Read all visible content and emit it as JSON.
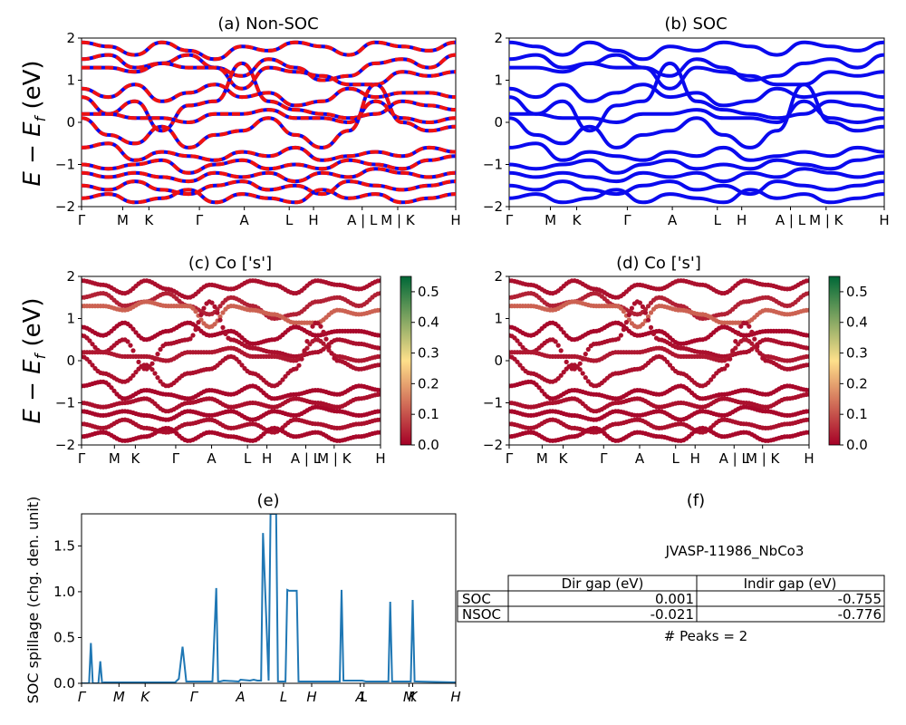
{
  "panels": {
    "a": {
      "title": "(a) Non-SOC"
    },
    "b": {
      "title": "(b) SOC"
    },
    "c": {
      "title": "(c)  Co ['s']"
    },
    "d": {
      "title": "(d) Co ['s']"
    },
    "e": {
      "title": "(e)"
    },
    "f": {
      "title": "(f)"
    }
  },
  "band_ylabel": "E − E",
  "band_ylabel_sub": "f",
  "band_ylabel_unit": " (eV)",
  "spillage_ylabel": "SOC spillage (chg. den. unit)",
  "colors": {
    "nsoc_band": "#ee1111",
    "soc_band": "#0a0aee",
    "spillage_line": "#1f77b4",
    "proj_low": "#a50026",
    "proj_mid": "#fee08b",
    "proj_high": "#006837"
  },
  "chart_data": [
    {
      "type": "line",
      "panel": "a",
      "title": "(a) Non-SOC",
      "ylim": [
        -2,
        2
      ],
      "yticks": [
        "-2",
        "-1",
        "0",
        "1",
        "2"
      ],
      "xticks": [
        "Γ",
        "M",
        "K",
        "Γ",
        "A",
        "L",
        "H",
        "A | L",
        "M | K",
        "H"
      ],
      "xtick_pos": [
        0,
        0.11,
        0.18,
        0.315,
        0.435,
        0.555,
        0.62,
        0.75,
        0.845,
        1.0
      ],
      "series": [
        {
          "values": [
            1.9,
            1.8,
            1.6,
            1.9,
            1.7,
            1.5,
            1.8,
            1.7,
            1.9,
            1.8,
            1.6,
            1.9,
            1.8,
            1.7,
            1.9
          ]
        },
        {
          "values": [
            1.5,
            1.6,
            1.3,
            1.4,
            1.6,
            1.3,
            1.1,
            1.5,
            1.3,
            1.0,
            1.1,
            1.4,
            1.5,
            1.3,
            1.6
          ]
        },
        {
          "values": [
            1.3,
            1.3,
            1.2,
            1.4,
            1.3,
            1.3,
            0.8,
            1.3,
            1.2,
            1.1,
            0.9,
            0.9,
            1.2,
            1.1,
            1.2
          ]
        },
        {
          "values": [
            0.8,
            0.6,
            0.9,
            0.5,
            0.7,
            0.9,
            0.6,
            0.7,
            0.4,
            0.5,
            0.8,
            0.6,
            0.7,
            0.7,
            0.6
          ]
        },
        {
          "values": [
            0.6,
            0.2,
            0.5,
            -0.2,
            0.4,
            0.5,
            1.4,
            0.5,
            0.3,
            0.2,
            0.1,
            0.2,
            0.5,
            0.4,
            0.3
          ]
        },
        {
          "values": [
            0.2,
            0.2,
            0.1,
            0.1,
            0.0,
            0.2,
            0.2,
            0.3,
            0.1,
            0.1,
            0.0,
            0.5,
            0.1,
            0.0,
            0.1
          ]
        },
        {
          "values": [
            0.1,
            -0.3,
            -0.5,
            -0.1,
            -0.6,
            -0.3,
            -0.2,
            0.1,
            -0.3,
            -0.6,
            -0.2,
            0.9,
            0.0,
            -0.2,
            -0.1
          ]
        },
        {
          "values": [
            -0.6,
            -0.5,
            -0.9,
            -0.7,
            -0.8,
            -0.9,
            -0.7,
            -0.8,
            -0.6,
            -0.9,
            -0.8,
            -0.7,
            -0.8,
            -0.6,
            -0.7
          ]
        },
        {
          "values": [
            -1.0,
            -1.1,
            -1.0,
            -0.9,
            -1.2,
            -1.0,
            -0.9,
            -1.1,
            -1.0,
            -1.1,
            -0.9,
            -1.0,
            -1.1,
            -0.9,
            -0.8
          ]
        },
        {
          "values": [
            -1.2,
            -1.3,
            -1.2,
            -1.3,
            -1.4,
            -1.2,
            -1.3,
            -1.2,
            -1.4,
            -1.2,
            -1.3,
            -1.1,
            -1.2,
            -1.3,
            -1.2
          ]
        },
        {
          "values": [
            -1.5,
            -1.6,
            -1.4,
            -1.6,
            -1.7,
            -1.5,
            -1.4,
            -1.6,
            -1.5,
            -1.7,
            -1.4,
            -1.5,
            -1.6,
            -1.5,
            -1.4
          ]
        },
        {
          "values": [
            -1.8,
            -1.7,
            -1.9,
            -1.8,
            -1.6,
            -1.9,
            -1.7,
            -1.8,
            -1.9,
            -1.6,
            -1.8,
            -1.7,
            -1.9,
            -1.8,
            -1.7
          ]
        }
      ]
    },
    {
      "type": "line",
      "panel": "b",
      "title": "(b) SOC",
      "ylim": [
        -2,
        2
      ],
      "yticks": [
        "-2",
        "-1",
        "0",
        "1",
        "2"
      ],
      "xticks": [
        "Γ",
        "M",
        "K",
        "Γ",
        "A",
        "L",
        "H",
        "A | L",
        "M | K",
        "H"
      ],
      "xtick_pos": [
        0,
        0.11,
        0.18,
        0.315,
        0.435,
        0.555,
        0.62,
        0.75,
        0.845,
        1.0
      ],
      "series": [
        {
          "values": [
            1.9,
            1.8,
            1.6,
            1.9,
            1.7,
            1.5,
            1.8,
            1.7,
            1.9,
            1.8,
            1.6,
            1.9,
            1.8,
            1.7,
            1.9
          ]
        },
        {
          "values": [
            1.5,
            1.6,
            1.3,
            1.4,
            1.6,
            1.3,
            1.1,
            1.5,
            1.3,
            1.0,
            1.1,
            1.4,
            1.5,
            1.3,
            1.6
          ]
        },
        {
          "values": [
            1.3,
            1.3,
            1.2,
            1.4,
            1.3,
            1.3,
            0.8,
            1.3,
            1.2,
            1.1,
            0.9,
            0.9,
            1.2,
            1.1,
            1.2
          ]
        },
        {
          "values": [
            0.8,
            0.6,
            0.9,
            0.5,
            0.7,
            0.9,
            0.6,
            0.7,
            0.4,
            0.5,
            0.8,
            0.6,
            0.7,
            0.7,
            0.6
          ]
        },
        {
          "values": [
            0.6,
            0.2,
            0.5,
            -0.2,
            0.4,
            0.5,
            1.4,
            0.5,
            0.3,
            0.2,
            0.1,
            0.2,
            0.5,
            0.4,
            0.3
          ]
        },
        {
          "values": [
            0.2,
            0.2,
            0.1,
            0.1,
            0.0,
            0.2,
            0.2,
            0.3,
            0.1,
            0.1,
            0.0,
            0.5,
            0.1,
            0.0,
            0.1
          ]
        },
        {
          "values": [
            0.1,
            -0.3,
            -0.5,
            -0.1,
            -0.6,
            -0.3,
            -0.2,
            0.1,
            -0.3,
            -0.6,
            -0.2,
            0.9,
            0.0,
            -0.2,
            -0.1
          ]
        },
        {
          "values": [
            -0.6,
            -0.5,
            -0.9,
            -0.7,
            -0.8,
            -0.9,
            -0.7,
            -0.8,
            -0.6,
            -0.9,
            -0.8,
            -0.7,
            -0.8,
            -0.6,
            -0.7
          ]
        },
        {
          "values": [
            -1.0,
            -1.1,
            -1.0,
            -0.9,
            -1.2,
            -1.0,
            -0.9,
            -1.1,
            -1.0,
            -1.1,
            -0.9,
            -1.0,
            -1.1,
            -0.9,
            -0.8
          ]
        },
        {
          "values": [
            -1.2,
            -1.3,
            -1.2,
            -1.3,
            -1.4,
            -1.2,
            -1.3,
            -1.2,
            -1.4,
            -1.2,
            -1.3,
            -1.1,
            -1.2,
            -1.3,
            -1.2
          ]
        },
        {
          "values": [
            -1.5,
            -1.6,
            -1.4,
            -1.6,
            -1.7,
            -1.5,
            -1.4,
            -1.6,
            -1.5,
            -1.7,
            -1.4,
            -1.5,
            -1.6,
            -1.5,
            -1.4
          ]
        },
        {
          "values": [
            -1.8,
            -1.7,
            -1.9,
            -1.8,
            -1.6,
            -1.9,
            -1.7,
            -1.8,
            -1.9,
            -1.6,
            -1.8,
            -1.7,
            -1.9,
            -1.8,
            -1.7
          ]
        }
      ]
    },
    {
      "type": "scatter",
      "panel": "c",
      "title": "(c)  Co ['s']",
      "ylim": [
        -2,
        2
      ],
      "yticks": [
        "-2",
        "-1",
        "0",
        "1",
        "2"
      ],
      "xticks": [
        "Γ",
        "M",
        "K",
        "Γ",
        "A",
        "L",
        "H",
        "A | L",
        "M | K",
        "H"
      ],
      "xtick_pos": [
        0,
        0.11,
        0.18,
        0.315,
        0.435,
        0.555,
        0.62,
        0.75,
        0.845,
        1.0
      ],
      "colorbar": {
        "min": 0.0,
        "max": 0.55,
        "ticks": [
          "0.0",
          "0.1",
          "0.2",
          "0.3",
          "0.4",
          "0.5"
        ],
        "tick_values": [
          0,
          0.1,
          0.2,
          0.3,
          0.4,
          0.5
        ]
      },
      "weights": [
        0.02,
        0.04,
        0.12,
        0.01,
        0.02,
        0.03,
        0.02,
        0.01,
        0.02,
        0.01,
        0.02,
        0.01
      ]
    },
    {
      "type": "scatter",
      "panel": "d",
      "title": "(d) Co ['s']",
      "ylim": [
        -2,
        2
      ],
      "yticks": [
        "-2",
        "-1",
        "0",
        "1",
        "2"
      ],
      "xticks": [
        "Γ",
        "M",
        "K",
        "Γ",
        "A",
        "L",
        "H",
        "A | L",
        "M | K",
        "H"
      ],
      "xtick_pos": [
        0,
        0.11,
        0.18,
        0.315,
        0.435,
        0.555,
        0.62,
        0.75,
        0.845,
        1.0
      ],
      "colorbar": {
        "min": 0.0,
        "max": 0.55,
        "ticks": [
          "0.0",
          "0.1",
          "0.2",
          "0.3",
          "0.4",
          "0.5"
        ],
        "tick_values": [
          0,
          0.1,
          0.2,
          0.3,
          0.4,
          0.5
        ]
      },
      "weights": [
        0.02,
        0.04,
        0.12,
        0.01,
        0.02,
        0.03,
        0.02,
        0.01,
        0.02,
        0.01,
        0.02,
        0.01
      ]
    },
    {
      "type": "line",
      "panel": "e",
      "title": "(e)",
      "ylabel": "SOC spillage (chg. den. unit)",
      "ylim": [
        0,
        1.85
      ],
      "yticks": [
        "0.0",
        "0.5",
        "1.0",
        "1.5"
      ],
      "ytick_values": [
        0,
        0.5,
        1.0,
        1.5
      ],
      "xticks": [
        "Γ",
        "M",
        "K",
        "Γ",
        "A",
        "L",
        "H",
        "A",
        "L",
        "M",
        "K",
        "H"
      ],
      "xtick_pos": [
        0,
        0.1,
        0.17,
        0.3,
        0.425,
        0.54,
        0.615,
        0.745,
        0.755,
        0.875,
        0.885,
        1.0
      ],
      "x": [
        0,
        0.02,
        0.025,
        0.03,
        0.035,
        0.045,
        0.05,
        0.055,
        0.06,
        0.15,
        0.25,
        0.26,
        0.27,
        0.28,
        0.35,
        0.36,
        0.365,
        0.37,
        0.38,
        0.42,
        0.425,
        0.45,
        0.46,
        0.47,
        0.48,
        0.485,
        0.5,
        0.505,
        0.51,
        0.52,
        0.525,
        0.545,
        0.55,
        0.555,
        0.575,
        0.58,
        0.69,
        0.695,
        0.7,
        0.705,
        0.75,
        0.76,
        0.8,
        0.82,
        0.825,
        0.83,
        0.835,
        0.87,
        0.88,
        0.885,
        0.89,
        0.895,
        1.0
      ],
      "y": [
        0.0,
        0.0,
        0.44,
        0.0,
        0.0,
        0.0,
        0.24,
        0.0,
        0.01,
        0.01,
        0.01,
        0.05,
        0.4,
        0.02,
        0.02,
        1.04,
        0.02,
        0.02,
        0.03,
        0.02,
        0.04,
        0.03,
        0.04,
        0.03,
        0.03,
        1.64,
        0.03,
        1.85,
        1.85,
        1.85,
        0.02,
        0.02,
        1.02,
        1.01,
        1.01,
        0.02,
        0.02,
        1.02,
        0.03,
        0.03,
        0.03,
        0.02,
        0.02,
        0.02,
        0.89,
        0.02,
        0.02,
        0.02,
        0.02,
        0.91,
        0.02,
        0.02,
        0.01
      ]
    },
    {
      "type": "table",
      "panel": "f",
      "title": "(f)",
      "caption": "JVASP-11986_NbCo3",
      "columns": [
        "Dir gap (eV)",
        "Indir gap (eV)"
      ],
      "rows": [
        {
          "label": "SOC",
          "values": [
            "0.001",
            "-0.755"
          ]
        },
        {
          "label": "NSOC",
          "values": [
            "-0.021",
            "-0.776"
          ]
        }
      ],
      "note": "# Peaks = 2"
    }
  ]
}
